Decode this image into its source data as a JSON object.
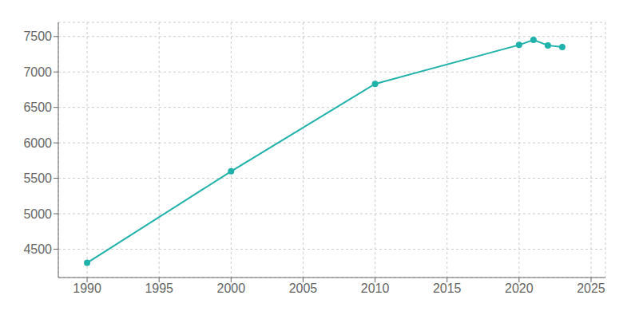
{
  "chart_data": {
    "type": "line",
    "x": [
      1990,
      2000,
      2010,
      2020,
      2021,
      2022,
      2023
    ],
    "values": [
      4307,
      5598,
      6831,
      7381,
      7453,
      7375,
      7352
    ],
    "color": "#20b2aa",
    "marker": "circle",
    "grid": true,
    "xlim": [
      1988,
      2026
    ],
    "ylim": [
      4100,
      7700
    ],
    "xticks": [
      1990,
      1995,
      2000,
      2005,
      2010,
      2015,
      2020,
      2025
    ],
    "yticks": [
      4500,
      5000,
      5500,
      6000,
      6500,
      7000,
      7500
    ]
  }
}
